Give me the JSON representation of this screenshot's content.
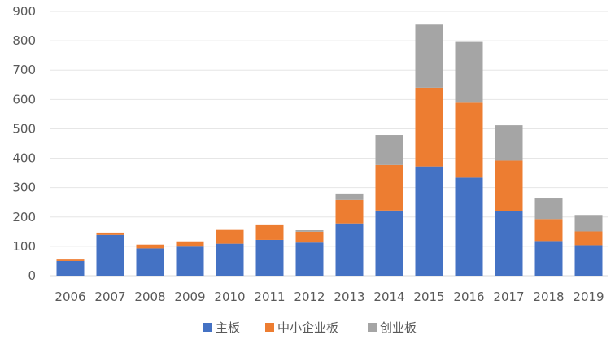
{
  "chart_data": {
    "type": "bar",
    "stacked": true,
    "title": "",
    "xlabel": "",
    "ylabel": "",
    "ylim": [
      0,
      900
    ],
    "yticks": [
      0,
      100,
      200,
      300,
      400,
      500,
      600,
      700,
      800,
      900
    ],
    "grid": "horizontal",
    "legend_position": "bottom",
    "categories": [
      "2006",
      "2007",
      "2008",
      "2009",
      "2010",
      "2011",
      "2012",
      "2013",
      "2014",
      "2015",
      "2016",
      "2017",
      "2018",
      "2019"
    ],
    "series": [
      {
        "name": "主板",
        "color": "#4472C4",
        "values": [
          50,
          139,
          93,
          99,
          109,
          122,
          113,
          178,
          222,
          372,
          334,
          221,
          118,
          104
        ]
      },
      {
        "name": "中小企业板",
        "color": "#ED7D31",
        "values": [
          5,
          8,
          13,
          18,
          47,
          50,
          37,
          80,
          155,
          268,
          255,
          171,
          75,
          47
        ]
      },
      {
        "name": "创业板",
        "color": "#A5A5A5",
        "values": [
          0,
          0,
          0,
          0,
          0,
          0,
          5,
          22,
          102,
          215,
          207,
          120,
          70,
          56
        ]
      }
    ]
  }
}
